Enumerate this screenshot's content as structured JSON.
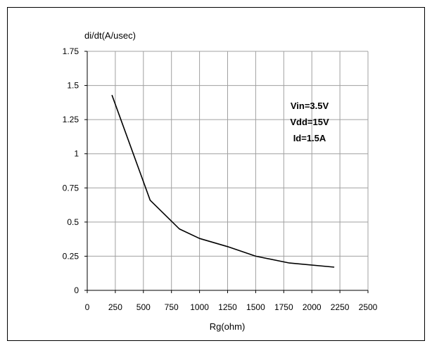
{
  "chart_data": {
    "type": "line",
    "title": "",
    "xlabel": "Rg(ohm)",
    "ylabel": "di/dt(A/usec)",
    "xlim": [
      0,
      2500
    ],
    "ylim": [
      0,
      1.75
    ],
    "x_ticks": [
      0,
      250,
      500,
      750,
      1000,
      1250,
      1500,
      1750,
      2000,
      2250,
      2500
    ],
    "x_tick_labels": [
      "0",
      "250",
      "500",
      "750",
      "1000",
      "1250",
      "1500",
      "1750",
      "2000",
      "2250",
      "2500"
    ],
    "y_ticks": [
      0,
      0.25,
      0.5,
      0.75,
      1,
      1.25,
      1.5,
      1.75
    ],
    "y_tick_labels": [
      "0",
      "0.25",
      "0.5",
      "0.75",
      "1",
      "1.25",
      "1.5",
      "1.75"
    ],
    "grid": true,
    "series": [
      {
        "x": [
          220,
          560,
          820,
          1000,
          1250,
          1500,
          1800,
          2200
        ],
        "y": [
          1.43,
          0.66,
          0.45,
          0.38,
          0.32,
          0.25,
          0.2,
          0.17
        ],
        "color": "#000000"
      }
    ],
    "annotations": [
      "Vin=3.5V",
      "Vdd=15V",
      "Id=1.5A"
    ]
  }
}
